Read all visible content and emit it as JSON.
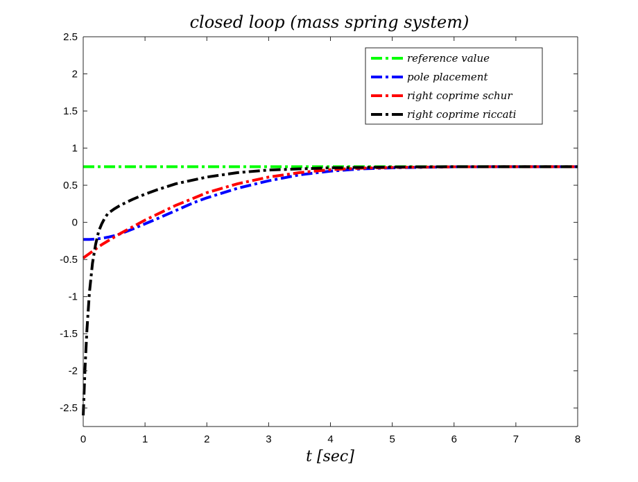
{
  "chart_data": {
    "type": "line",
    "title": "closed loop (mass spring system)",
    "xlabel": "t [sec]",
    "ylabel": "",
    "xlim": [
      0,
      8
    ],
    "ylim": [
      -2.75,
      2.5
    ],
    "xticks": [
      0,
      1,
      2,
      3,
      4,
      5,
      6,
      7,
      8
    ],
    "xtick_labels": [
      "0",
      "1",
      "2",
      "3",
      "4",
      "5",
      "6",
      "7",
      "8"
    ],
    "yticks": [
      -2.5,
      -2,
      -1.5,
      -1,
      -0.5,
      0,
      0.5,
      1,
      1.5,
      2,
      2.5
    ],
    "ytick_labels": [
      "-2.5",
      "-2",
      "-1.5",
      "-1",
      "-0.5",
      "0",
      "0.5",
      "1",
      "1.5",
      "2",
      "2.5"
    ],
    "grid": false,
    "legend_position": "top-right",
    "series": [
      {
        "name": "reference  value",
        "color": "#00ff00",
        "x": [
          0,
          1,
          2,
          3,
          4,
          5,
          6,
          7,
          8
        ],
        "y": [
          0.75,
          0.75,
          0.75,
          0.75,
          0.75,
          0.75,
          0.75,
          0.75,
          0.75
        ]
      },
      {
        "name": "pole placement",
        "color": "#0000ff",
        "x": [
          0,
          0.1,
          0.2,
          0.3,
          0.4,
          0.5,
          0.6,
          0.8,
          1.0,
          1.2,
          1.5,
          1.8,
          2.0,
          2.5,
          3.0,
          3.5,
          4.0,
          4.5,
          5.0,
          6.0,
          7.0,
          8.0
        ],
        "y": [
          -0.23,
          -0.23,
          -0.225,
          -0.215,
          -0.2,
          -0.18,
          -0.155,
          -0.09,
          -0.02,
          0.05,
          0.16,
          0.27,
          0.33,
          0.46,
          0.56,
          0.64,
          0.69,
          0.72,
          0.735,
          0.748,
          0.75,
          0.75
        ]
      },
      {
        "name": "right coprime schur",
        "color": "#ff0000",
        "x": [
          0,
          0.1,
          0.2,
          0.3,
          0.4,
          0.5,
          0.6,
          0.8,
          1.0,
          1.2,
          1.5,
          1.8,
          2.0,
          2.5,
          3.0,
          3.5,
          4.0,
          4.5,
          5.0,
          6.0,
          7.0,
          8.0
        ],
        "y": [
          -0.48,
          -0.42,
          -0.36,
          -0.3,
          -0.25,
          -0.2,
          -0.15,
          -0.06,
          0.03,
          0.11,
          0.23,
          0.33,
          0.4,
          0.52,
          0.61,
          0.67,
          0.71,
          0.73,
          0.74,
          0.748,
          0.75,
          0.75
        ]
      },
      {
        "name": "right coprime riccati",
        "color": "#000000",
        "x": [
          0,
          0.03,
          0.06,
          0.1,
          0.15,
          0.2,
          0.25,
          0.3,
          0.35,
          0.4,
          0.5,
          0.6,
          0.8,
          1.0,
          1.2,
          1.5,
          2.0,
          2.5,
          3.0,
          3.5,
          4.0,
          5.0,
          6.0,
          7.0,
          8.0
        ],
        "y": [
          -2.6,
          -1.95,
          -1.45,
          -0.95,
          -0.55,
          -0.3,
          -0.12,
          -0.02,
          0.06,
          0.12,
          0.18,
          0.23,
          0.31,
          0.38,
          0.44,
          0.52,
          0.61,
          0.67,
          0.705,
          0.72,
          0.735,
          0.745,
          0.75,
          0.75,
          0.75
        ]
      }
    ]
  }
}
